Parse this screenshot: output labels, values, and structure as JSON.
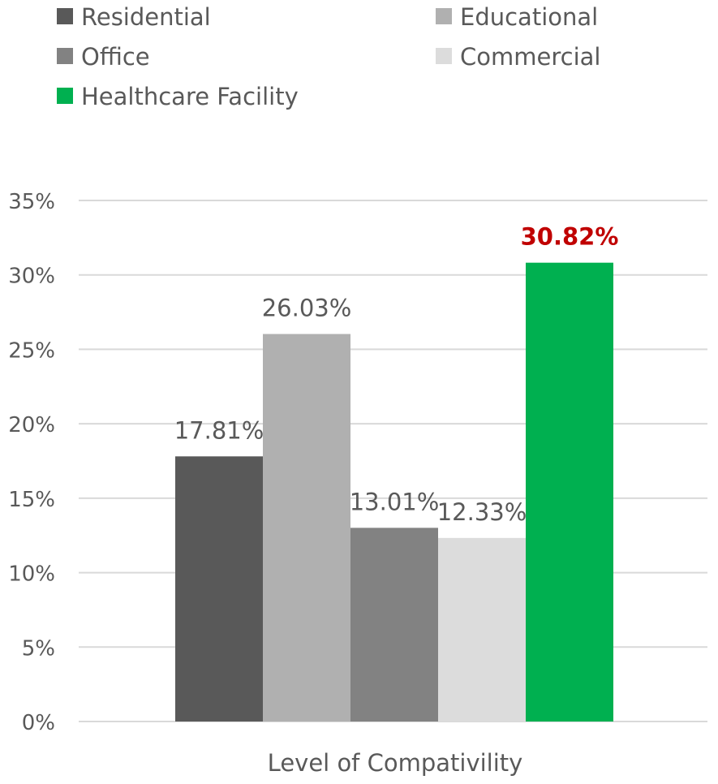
{
  "chart_data": {
    "type": "bar",
    "categories": [
      "Level of Compativility"
    ],
    "series": [
      {
        "name": "Residential",
        "values": [
          17.81
        ],
        "label": "17.81%",
        "color": "#595959"
      },
      {
        "name": "Educational",
        "values": [
          26.03
        ],
        "label": "26.03%",
        "color": "#b0b0b0"
      },
      {
        "name": "Office",
        "values": [
          13.01
        ],
        "label": "13.01%",
        "color": "#828282"
      },
      {
        "name": "Commercial",
        "values": [
          12.33
        ],
        "label": "12.33%",
        "color": "#dcdcdc"
      },
      {
        "name": "Healthcare Facility",
        "values": [
          30.82
        ],
        "label": "30.82%",
        "color": "#00b050",
        "highlight": true
      }
    ],
    "xlabel": "Level of Compativility",
    "ylim": [
      0,
      35
    ],
    "yticks": [
      "0%",
      "5%",
      "10%",
      "15%",
      "20%",
      "25%",
      "30%",
      "35%"
    ],
    "grid": true,
    "legend_position": "top",
    "highlight_label_color": "#c00000"
  }
}
